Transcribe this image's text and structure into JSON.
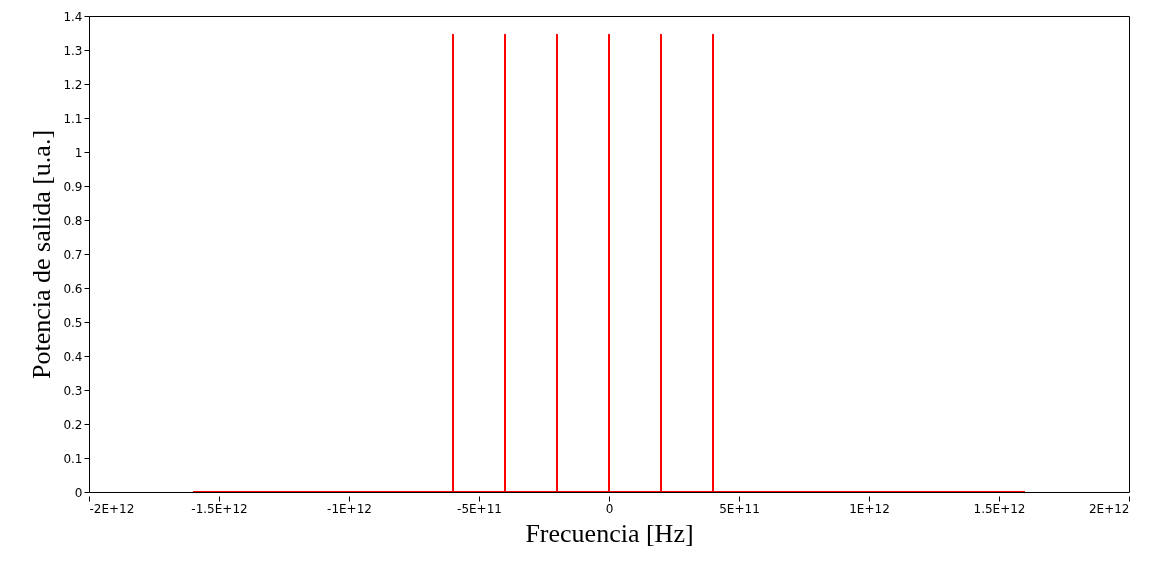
{
  "chart_data": {
    "type": "line",
    "xlabel": "Frecuencia [Hz]",
    "ylabel": "Potencia de salida [u.a.]",
    "x": [
      -1600000000000.0,
      -600000000000.0,
      -600000000000.0,
      -600000000000.0,
      -600000000000.0,
      -600000000000.0,
      -400000000000.0,
      -400000000000.0,
      -400000000000.0,
      -400000000000.0,
      -400000000000.0,
      -200000000000.0,
      -200000000000.0,
      -200000000000.0,
      -200000000000.0,
      -200000000000.0,
      0,
      0,
      0,
      0,
      0,
      200000000000.0,
      200000000000.0,
      200000000000.0,
      200000000000.0,
      200000000000.0,
      400000000000.0,
      400000000000.0,
      400000000000.0,
      400000000000.0,
      400000000000.0,
      1600000000000.0
    ],
    "series": [
      {
        "color": "#ff0000",
        "values": [
          0,
          0,
          0.67,
          1.345,
          0.67,
          0,
          0,
          0.67,
          1.345,
          0.67,
          0,
          0,
          0.67,
          1.345,
          0.67,
          0,
          0,
          0.67,
          1.345,
          0.67,
          0,
          0,
          0.67,
          1.345,
          0.67,
          0,
          0,
          0.67,
          1.345,
          0.67,
          0,
          0
        ]
      }
    ],
    "xlim": [
      -2000000000000.0,
      2000000000000.0
    ],
    "xticks": [
      {
        "value": -2000000000000.0,
        "label": "-2E+12"
      },
      {
        "value": -1500000000000.0,
        "label": "-1.5E+12"
      },
      {
        "value": -1000000000000.0,
        "label": "-1E+12"
      },
      {
        "value": -500000000000.0,
        "label": "-5E+11"
      },
      0,
      {
        "value": 500000000000.0,
        "label": "5E+11"
      },
      {
        "value": 1000000000000.0,
        "label": "1E+12"
      },
      {
        "value": 1500000000000.0,
        "label": "1.5E+12"
      },
      {
        "value": 2000000000000.0,
        "label": "2E+12"
      }
    ],
    "ylim": [
      0,
      1.4
    ],
    "yticks": [
      0,
      0.1,
      0.2,
      0.3,
      0.4,
      0.5,
      0.6,
      0.7,
      0.8,
      0.9,
      1,
      1.1,
      1.2,
      1.3,
      1.4
    ],
    "grid": false
  }
}
